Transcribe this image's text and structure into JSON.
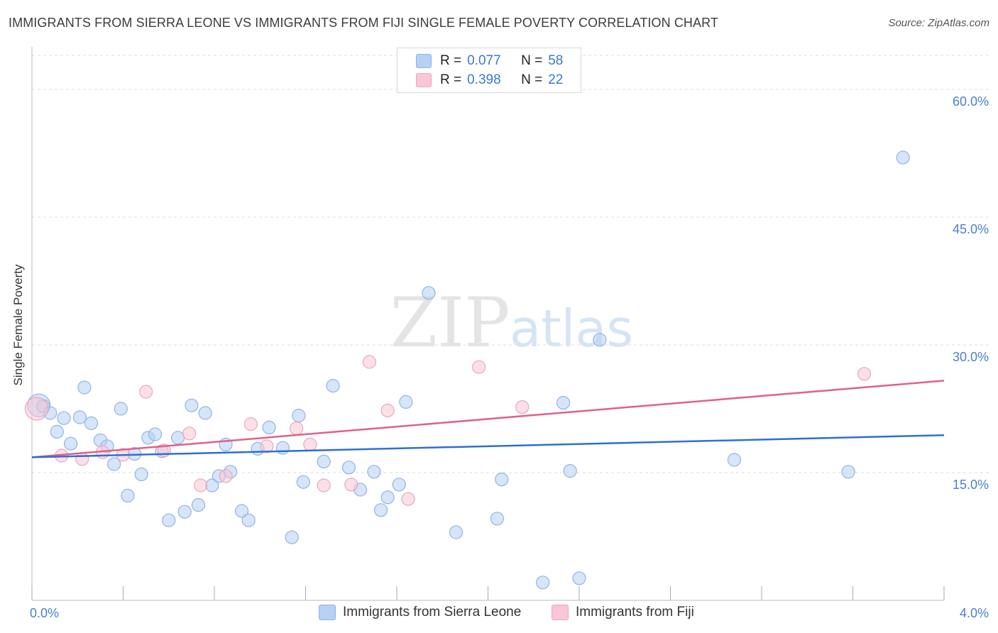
{
  "title": "IMMIGRANTS FROM SIERRA LEONE VS IMMIGRANTS FROM FIJI SINGLE FEMALE POVERTY CORRELATION CHART",
  "source": "Source: ZipAtlas.com",
  "watermark": {
    "zip": "ZIP",
    "atlas": "atlas"
  },
  "colors": {
    "blue_fill": "#b7d0f3",
    "blue_stroke": "#8fb4e8",
    "blue_line": "#2f6fd0",
    "pink_fill": "#f8c6d6",
    "pink_stroke": "#eea6bd",
    "pink_line": "#e0608c",
    "tick_text": "#4a7fd0",
    "grid": "#dddddd"
  },
  "legend": {
    "rows": [
      {
        "r_label": "R =",
        "r_value": "0.077",
        "n_label": "N =",
        "n_value": "58"
      },
      {
        "r_label": "R =",
        "r_value": "0.398",
        "n_label": "N =",
        "n_value": "22"
      }
    ]
  },
  "chart_data": {
    "type": "scatter",
    "title": "IMMIGRANTS FROM SIERRA LEONE VS IMMIGRANTS FROM FIJI SINGLE FEMALE POVERTY CORRELATION CHART",
    "xlabel": "",
    "ylabel": "Single Female Poverty",
    "xlim": [
      0,
      4.0
    ],
    "ylim": [
      0,
      64
    ],
    "x_tick_labels": [
      "0.0%",
      "4.0%"
    ],
    "y_ticks": [
      15,
      30,
      45,
      60
    ],
    "y_tick_labels": [
      "15.0%",
      "30.0%",
      "45.0%",
      "60.0%"
    ],
    "grid": true,
    "series": [
      {
        "name": "Immigrants from Sierra Leone",
        "color": "blue",
        "R": 0.077,
        "N": 58,
        "trend": {
          "x": [
            0,
            4.0
          ],
          "y": [
            16.8,
            19.4
          ]
        },
        "points": [
          {
            "x": 0.03,
            "y": 22.9
          },
          {
            "x": 0.05,
            "y": 22.8
          },
          {
            "x": 0.08,
            "y": 22.0
          },
          {
            "x": 0.11,
            "y": 19.8
          },
          {
            "x": 0.14,
            "y": 21.4
          },
          {
            "x": 0.17,
            "y": 18.4
          },
          {
            "x": 0.21,
            "y": 21.5
          },
          {
            "x": 0.23,
            "y": 25.0
          },
          {
            "x": 0.26,
            "y": 20.8
          },
          {
            "x": 0.3,
            "y": 18.8
          },
          {
            "x": 0.33,
            "y": 18.1
          },
          {
            "x": 0.36,
            "y": 16.0
          },
          {
            "x": 0.39,
            "y": 22.5
          },
          {
            "x": 0.42,
            "y": 12.3
          },
          {
            "x": 0.45,
            "y": 17.2
          },
          {
            "x": 0.48,
            "y": 14.8
          },
          {
            "x": 0.51,
            "y": 19.1
          },
          {
            "x": 0.54,
            "y": 19.5
          },
          {
            "x": 0.57,
            "y": 17.5
          },
          {
            "x": 0.6,
            "y": 9.4
          },
          {
            "x": 0.64,
            "y": 19.1
          },
          {
            "x": 0.67,
            "y": 10.4
          },
          {
            "x": 0.7,
            "y": 22.9
          },
          {
            "x": 0.73,
            "y": 11.2
          },
          {
            "x": 0.76,
            "y": 22.0
          },
          {
            "x": 0.79,
            "y": 13.5
          },
          {
            "x": 0.82,
            "y": 14.6
          },
          {
            "x": 0.85,
            "y": 18.3
          },
          {
            "x": 0.87,
            "y": 15.1
          },
          {
            "x": 0.92,
            "y": 10.5
          },
          {
            "x": 0.95,
            "y": 9.4
          },
          {
            "x": 0.99,
            "y": 17.8
          },
          {
            "x": 1.04,
            "y": 20.3
          },
          {
            "x": 1.1,
            "y": 17.9
          },
          {
            "x": 1.14,
            "y": 7.4
          },
          {
            "x": 1.17,
            "y": 21.7
          },
          {
            "x": 1.19,
            "y": 13.9
          },
          {
            "x": 1.28,
            "y": 16.3
          },
          {
            "x": 1.32,
            "y": 25.2
          },
          {
            "x": 1.39,
            "y": 15.6
          },
          {
            "x": 1.44,
            "y": 13.0
          },
          {
            "x": 1.5,
            "y": 15.1
          },
          {
            "x": 1.53,
            "y": 10.6
          },
          {
            "x": 1.56,
            "y": 12.1
          },
          {
            "x": 1.61,
            "y": 13.6
          },
          {
            "x": 1.64,
            "y": 23.3
          },
          {
            "x": 1.74,
            "y": 36.1
          },
          {
            "x": 1.86,
            "y": 8.0
          },
          {
            "x": 2.04,
            "y": 9.6
          },
          {
            "x": 2.06,
            "y": 14.2
          },
          {
            "x": 2.24,
            "y": 2.1
          },
          {
            "x": 2.33,
            "y": 23.2
          },
          {
            "x": 2.36,
            "y": 15.2
          },
          {
            "x": 2.4,
            "y": 2.6
          },
          {
            "x": 2.49,
            "y": 30.6
          },
          {
            "x": 3.08,
            "y": 16.5
          },
          {
            "x": 3.58,
            "y": 15.1
          },
          {
            "x": 3.82,
            "y": 52.0
          }
        ]
      },
      {
        "name": "Immigrants from Fiji",
        "color": "pink",
        "R": 0.398,
        "N": 22,
        "trend": {
          "x": [
            0,
            4.0
          ],
          "y": [
            16.8,
            25.8
          ]
        },
        "points": [
          {
            "x": 0.02,
            "y": 22.5
          },
          {
            "x": 0.13,
            "y": 17.0
          },
          {
            "x": 0.22,
            "y": 16.6
          },
          {
            "x": 0.31,
            "y": 17.4
          },
          {
            "x": 0.4,
            "y": 17.1
          },
          {
            "x": 0.5,
            "y": 24.5
          },
          {
            "x": 0.58,
            "y": 17.6
          },
          {
            "x": 0.69,
            "y": 19.6
          },
          {
            "x": 0.74,
            "y": 13.5
          },
          {
            "x": 0.85,
            "y": 14.6
          },
          {
            "x": 0.96,
            "y": 20.7
          },
          {
            "x": 1.03,
            "y": 18.1
          },
          {
            "x": 1.16,
            "y": 20.2
          },
          {
            "x": 1.22,
            "y": 18.3
          },
          {
            "x": 1.28,
            "y": 13.5
          },
          {
            "x": 1.4,
            "y": 13.6
          },
          {
            "x": 1.48,
            "y": 28.0
          },
          {
            "x": 1.56,
            "y": 22.3
          },
          {
            "x": 1.65,
            "y": 11.9
          },
          {
            "x": 1.96,
            "y": 27.4
          },
          {
            "x": 2.15,
            "y": 22.7
          },
          {
            "x": 3.65,
            "y": 26.6
          }
        ]
      }
    ]
  }
}
